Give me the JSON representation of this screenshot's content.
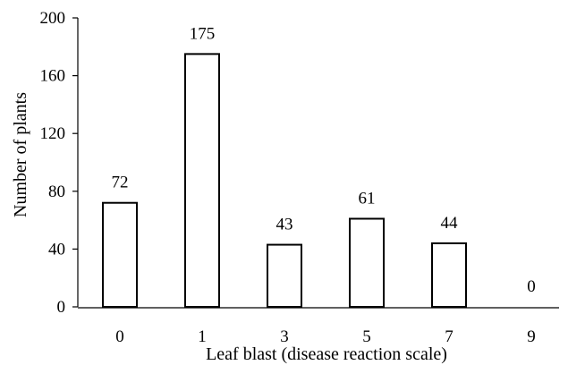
{
  "chart_data": {
    "type": "bar",
    "categories": [
      "0",
      "1",
      "3",
      "5",
      "7",
      "9"
    ],
    "values": [
      72,
      175,
      43,
      61,
      44,
      0
    ],
    "data_labels": [
      "72",
      "175",
      "43",
      "61",
      "44",
      "0"
    ],
    "title": "",
    "xlabel": "Leaf blast (disease reaction scale)",
    "ylabel": "Number of plants",
    "ylim": [
      0,
      200
    ],
    "yticks": [
      "0",
      "40",
      "80",
      "120",
      "160",
      "200"
    ],
    "grid": false,
    "bar_fill": "#ffffff",
    "bar_stroke": "#000000"
  }
}
